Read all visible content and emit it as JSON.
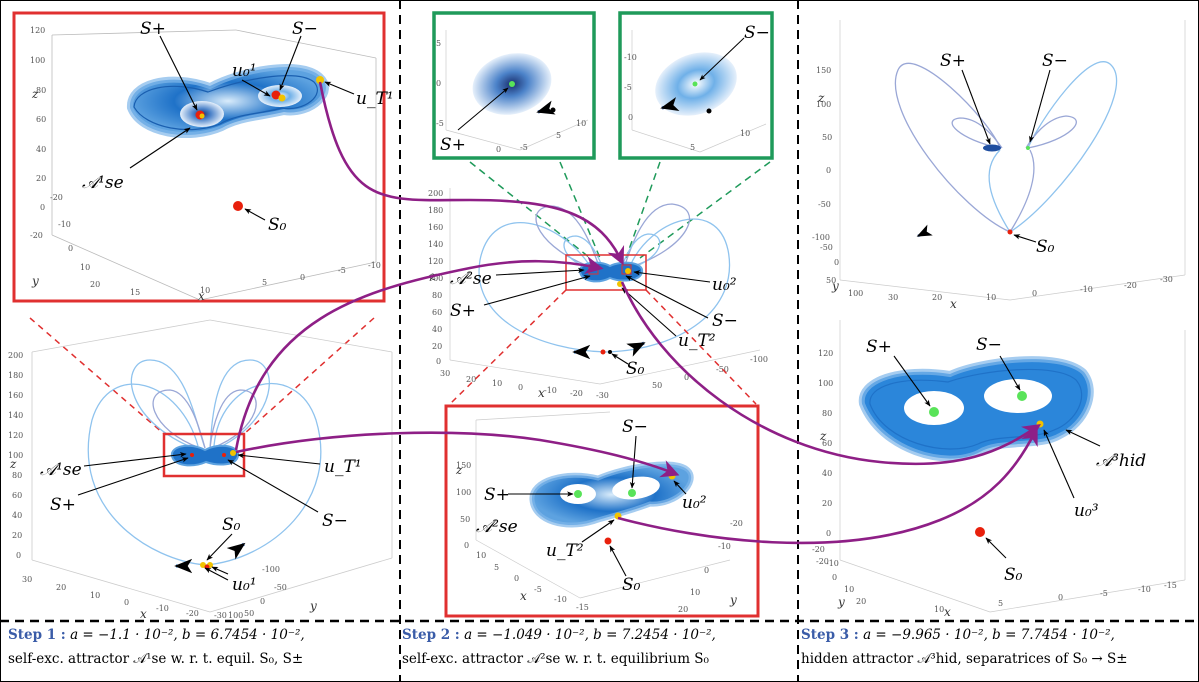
{
  "colors": {
    "frame_red": "#e03030",
    "frame_green": "#1f9a5a",
    "arrow_purple": "#8e1f86",
    "orbit_blue": "#1f72c8",
    "orbit_light": "#8fc3ee",
    "point_yellow": "#f2c300",
    "point_red": "#e8200c",
    "point_green": "#59e359",
    "step_text": "#3a5ca8"
  },
  "panel1": {
    "zoom": {
      "S_plus": "S+",
      "S_minus": "S−",
      "u01": "u₀¹",
      "uT1": "u_T¹",
      "A1": "𝒜¹se",
      "S0": "S₀",
      "ticks_z": [
        "120",
        "100",
        "80",
        "60",
        "40",
        "20",
        "0",
        "-20"
      ],
      "ticks_y": [
        "-20",
        "-10",
        "0",
        "10",
        "20"
      ],
      "ticks_x": [
        "15",
        "10",
        "5",
        "0",
        "-5",
        "-10"
      ],
      "axis_z": "z",
      "axis_y": "y",
      "axis_x": "x"
    },
    "full": {
      "A1": "𝒜¹se",
      "uT1": "u_T¹",
      "S_plus": "S+",
      "S_minus": "S−",
      "S0": "S₀",
      "u01": "u₀¹",
      "ticks_z": [
        "200",
        "180",
        "160",
        "140",
        "120",
        "100",
        "80",
        "60",
        "40",
        "20",
        "0"
      ],
      "ticks_x": [
        "30",
        "20",
        "10",
        "0",
        "-10",
        "-20",
        "-30"
      ],
      "ticks_y": [
        "-100",
        "-50",
        "0",
        "50",
        "100"
      ],
      "axis_z": "z",
      "axis_x": "x",
      "axis_y": "y"
    }
  },
  "panel2": {
    "inset_left": {
      "S_plus": "S+",
      "ticks": [
        "5",
        "0",
        "-5",
        "0",
        "-5",
        "5",
        "10"
      ]
    },
    "inset_right": {
      "S_minus": "S−",
      "ticks": [
        "-10",
        "-5",
        "0",
        "5",
        "10"
      ]
    },
    "full": {
      "A2": "𝒜²se",
      "S_plus": "S+",
      "u02": "u₀²",
      "S_minus": "S−",
      "uT2": "u_T²",
      "S0": "S₀",
      "ticks_z": [
        "200",
        "180",
        "160",
        "140",
        "120",
        "100",
        "80",
        "60",
        "40",
        "20",
        "0"
      ],
      "ticks_x": [
        "30",
        "20",
        "10",
        "0",
        "-10",
        "-20",
        "-30"
      ],
      "ticks_y": [
        "-100",
        "-50",
        "0",
        "50"
      ],
      "axis_x": "x",
      "axis_z": "z"
    },
    "zoom": {
      "S_minus": "S−",
      "S_plus": "S+",
      "A2": "𝒜²se",
      "u02": "u₀²",
      "uT2": "u_T²",
      "S0": "S₀",
      "ticks_z": [
        "150",
        "100",
        "50",
        "0"
      ],
      "ticks_x": [
        "10",
        "5",
        "0",
        "-5",
        "-10",
        "-15"
      ],
      "ticks_y": [
        "-20",
        "-10",
        "0",
        "10",
        "20"
      ],
      "axis_x": "x",
      "axis_y": "y",
      "axis_z": "z"
    }
  },
  "panel3": {
    "top": {
      "S_plus": "S+",
      "S_minus": "S−",
      "S0": "S₀",
      "ticks_z": [
        "150",
        "100",
        "50",
        "0",
        "-50",
        "-100"
      ],
      "ticks_x": [
        "30",
        "20",
        "10",
        "0",
        "-10",
        "-20",
        "-30"
      ],
      "ticks_y": [
        "100",
        "50",
        "0",
        "-50"
      ],
      "axis_x": "x",
      "axis_y": "y",
      "axis_z": "z"
    },
    "bottom": {
      "S_plus": "S+",
      "S_minus": "S−",
      "A3": "𝒜³hid",
      "u03": "u₀³",
      "S0": "S₀",
      "ticks_z": [
        "120",
        "100",
        "80",
        "60",
        "40",
        "20",
        "0",
        "-20"
      ],
      "ticks_x": [
        "10",
        "5",
        "0",
        "-5",
        "-10",
        "-15"
      ],
      "ticks_y": [
        "20",
        "10",
        "0",
        "-10",
        "-20"
      ],
      "axis_x": "x",
      "axis_y": "y",
      "axis_z": "z"
    }
  },
  "captions": {
    "step1_label": "Step 1 :",
    "step1_params": "a = −1.1 · 10⁻², b = 6.7454 · 10⁻²,",
    "step1_desc": "self-exc. attractor 𝒜¹se w. r. t. equil. S₀, S±",
    "step2_label": "Step 2 :",
    "step2_params": "a = −1.049 · 10⁻², b = 7.2454 · 10⁻²,",
    "step2_desc": "self-exc. attractor 𝒜²se w. r. t. equilibrium S₀",
    "step3_label": "Step 3 :",
    "step3_params": "a = −9.965 · 10⁻², b = 7.7454 · 10⁻²,",
    "step3_desc": "hidden attractor 𝒜³hid, separatrices of S₀ → S±"
  }
}
